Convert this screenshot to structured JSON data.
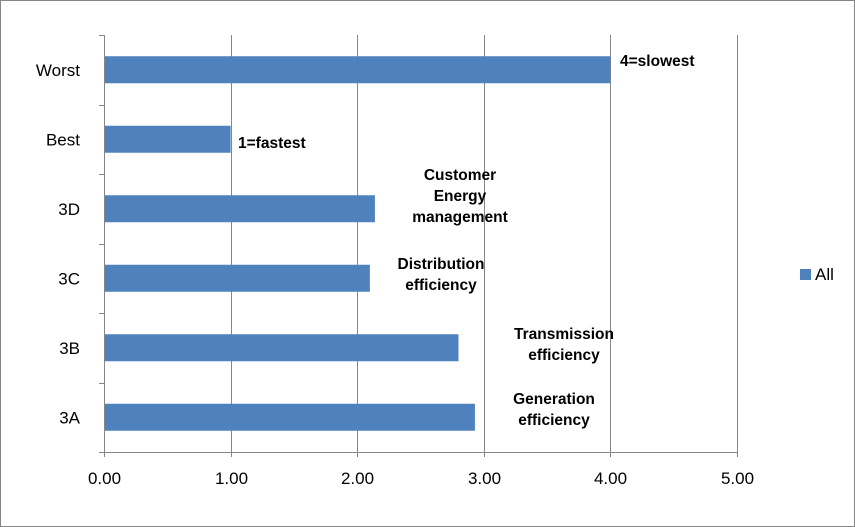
{
  "chart_data": {
    "type": "bar",
    "orientation": "horizontal",
    "categories": [
      "3A",
      "3B",
      "3C",
      "3D",
      "Best",
      "Worst"
    ],
    "series": [
      {
        "name": "All",
        "values": [
          2.93,
          2.8,
          2.1,
          2.14,
          1.0,
          4.0
        ]
      }
    ],
    "annotations": [
      {
        "category": "Worst",
        "lines": [
          "4=slowest"
        ]
      },
      {
        "category": "Best",
        "lines": [
          "1=fastest"
        ]
      },
      {
        "category": "3D",
        "lines": [
          "Customer",
          "Energy",
          "management"
        ]
      },
      {
        "category": "3C",
        "lines": [
          "Distribution",
          "efficiency"
        ]
      },
      {
        "category": "3B",
        "lines": [
          "Transmission",
          "efficiency"
        ]
      },
      {
        "category": "3A",
        "lines": [
          "Generation",
          "efficiency"
        ]
      }
    ],
    "xticks": [
      "0.00",
      "1.00",
      "2.00",
      "3.00",
      "4.00",
      "5.00"
    ],
    "xlim": [
      0,
      5
    ],
    "grid": "vertical",
    "legend_position": "right",
    "title": "",
    "xlabel": "",
    "ylabel": "",
    "colors": {
      "bar": "#4f81bd",
      "grid": "#868686",
      "border": "#868686"
    }
  }
}
